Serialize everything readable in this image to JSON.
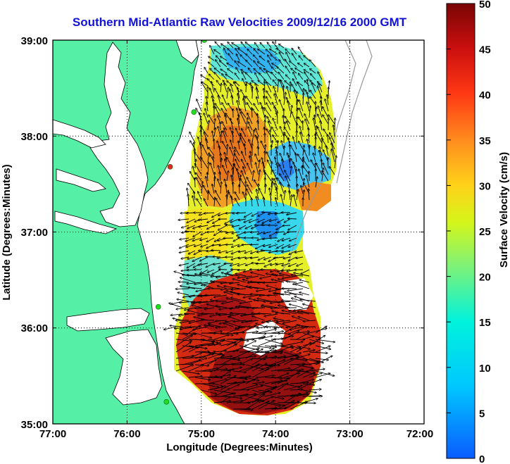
{
  "title": "Southern Mid-Atlantic Raw Velocities 2009/12/16 2000 GMT",
  "x_axis": {
    "label": "Longitude (Degrees:Minutes)",
    "ticks": [
      "77:00",
      "76:00",
      "75:00",
      "74:00",
      "73:00",
      "72:00"
    ],
    "range": [
      -77,
      -72
    ]
  },
  "y_axis": {
    "label": "Latitude (Degrees:Minutes)",
    "ticks": [
      "39:00",
      "38:00",
      "37:00",
      "36:00",
      "35:00"
    ],
    "range": [
      35,
      39
    ]
  },
  "colorbar": {
    "label": "Surface Velocity (cm/s)",
    "ticks": [
      "50",
      "45",
      "40",
      "35",
      "30",
      "25",
      "20",
      "15",
      "10",
      "5",
      "0"
    ],
    "range": [
      0,
      50
    ]
  },
  "colors": {
    "title": "#1212d6",
    "land": "#55f0a5",
    "station_active": "#22dd22",
    "station_inactive": "#ee2222"
  },
  "stations": [
    {
      "lon": -74.96,
      "lat": 39.0,
      "status": "active"
    },
    {
      "lon": -75.1,
      "lat": 38.25,
      "status": "active"
    },
    {
      "lon": -75.42,
      "lat": 37.68,
      "status": "inactive"
    },
    {
      "lon": -75.58,
      "lat": 36.22,
      "status": "active"
    },
    {
      "lon": -75.47,
      "lat": 35.23,
      "status": "active"
    }
  ],
  "grid": "dotted"
}
